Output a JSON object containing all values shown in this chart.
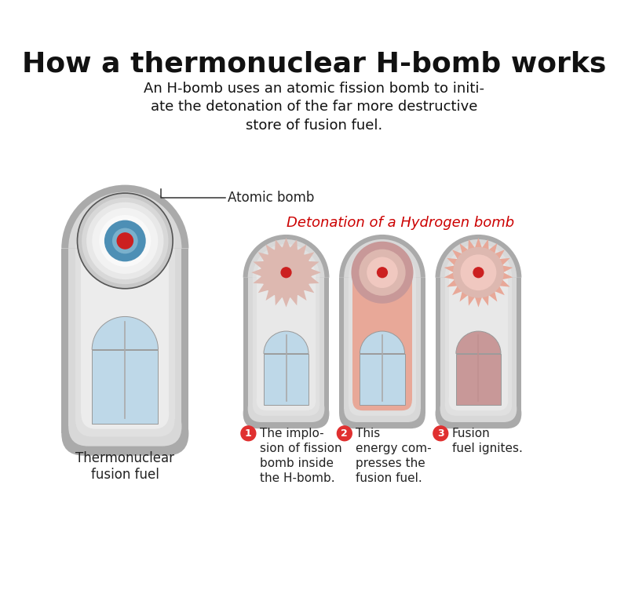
{
  "title": "How a thermonuclear H-bomb works",
  "subtitle": "An H-bomb uses an atomic fission bomb to initi-\nate the detonation of the far more destructive\nstore of fusion fuel.",
  "bg_color": "#ffffff",
  "detonation_label": "Detonation of a Hydrogen bomb",
  "detonation_color": "#cc0000",
  "atomic_bomb_label": "Atomic bomb",
  "fusion_fuel_label": "Thermonuclear\nfusion fuel",
  "step_labels": [
    "The implo-\nsion of fission\nbomb inside\nthe H-bomb.",
    "This\nenergy com-\npresses the\nfusion fuel.",
    "Fusion\nfuel ignites."
  ],
  "step_numbers": [
    "1",
    "2",
    "3"
  ],
  "step_circle_color": "#e03030",
  "gray_dark": "#999999",
  "gray_mid": "#c0c0c0",
  "gray_light": "#d8d8d8",
  "gray_inner": "#e8e8e8",
  "blue_fuel": "#bed8e8",
  "pink_hot1": "#e8a898",
  "pink_hot2": "#ddb8b0",
  "pink_hot3": "#c89898",
  "white_sphere_outer": "#d0d0d0",
  "white_sphere_mid": "#e8e8e8",
  "white_sphere_inner": "#f8f8f8",
  "white_sphere_center": "#ffffff",
  "blue_ring": "#4d8fb5",
  "blue_ring_inner": "#7ab0cc",
  "red_core": "#cc2020",
  "shadow_color": "#cccccc"
}
